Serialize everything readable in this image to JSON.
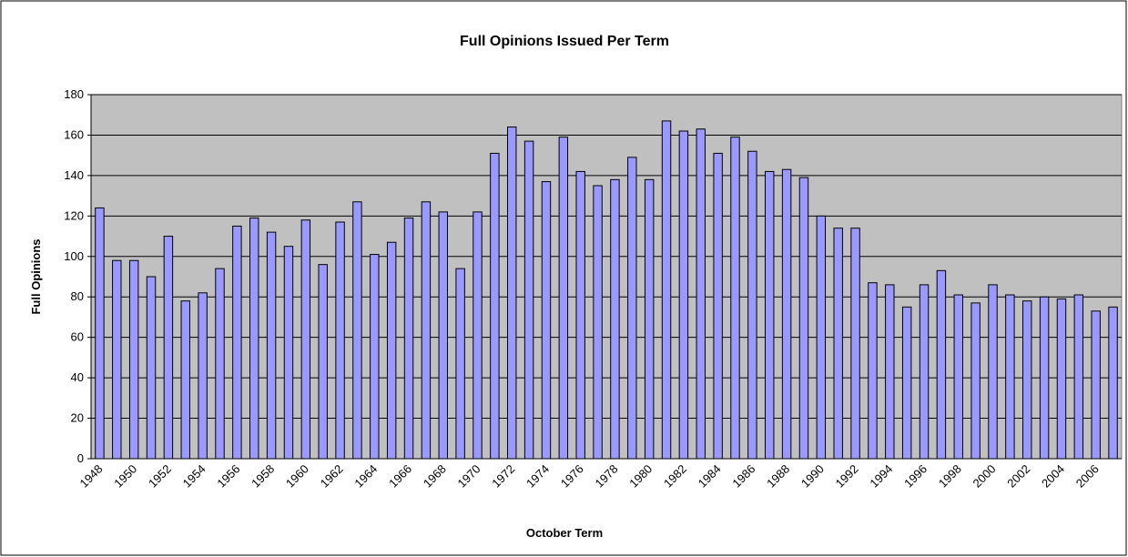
{
  "chart_data": {
    "type": "bar",
    "title": "Full Opinions Issued Per Term",
    "x_label": "October Term",
    "y_label": "Full Opinions",
    "categories": [
      "1948",
      null,
      "1950",
      null,
      "1952",
      null,
      "1954",
      null,
      "1956",
      null,
      "1958",
      null,
      "1960",
      null,
      "1962",
      null,
      "1964",
      null,
      "1966",
      null,
      "1968",
      null,
      "1970",
      null,
      "1972",
      null,
      "1974",
      null,
      "1976",
      null,
      "1978",
      null,
      "1980",
      null,
      "1982",
      null,
      "1984",
      null,
      "1986",
      null,
      "1988",
      null,
      "1990",
      null,
      "1992",
      null,
      "1994",
      null,
      "1996",
      null,
      "1998",
      null,
      "2000",
      null,
      "2002",
      null,
      "2004",
      null,
      "2006",
      null
    ],
    "values": [
      124,
      98,
      98,
      90,
      110,
      78,
      82,
      94,
      115,
      119,
      112,
      105,
      118,
      96,
      117,
      127,
      101,
      107,
      119,
      127,
      122,
      94,
      122,
      151,
      164,
      157,
      137,
      159,
      142,
      135,
      138,
      149,
      138,
      167,
      162,
      163,
      151,
      159,
      152,
      142,
      143,
      139,
      120,
      114,
      114,
      87,
      86,
      75,
      86,
      93,
      81,
      77,
      86,
      81,
      78,
      80,
      79,
      81,
      73,
      75
    ],
    "color": "#9999ff",
    "plot_background": "#c0c0c0",
    "ylim": [
      0,
      180
    ],
    "yticks": [
      0,
      20,
      40,
      60,
      80,
      100,
      120,
      140,
      160,
      180
    ],
    "grid": true
  }
}
